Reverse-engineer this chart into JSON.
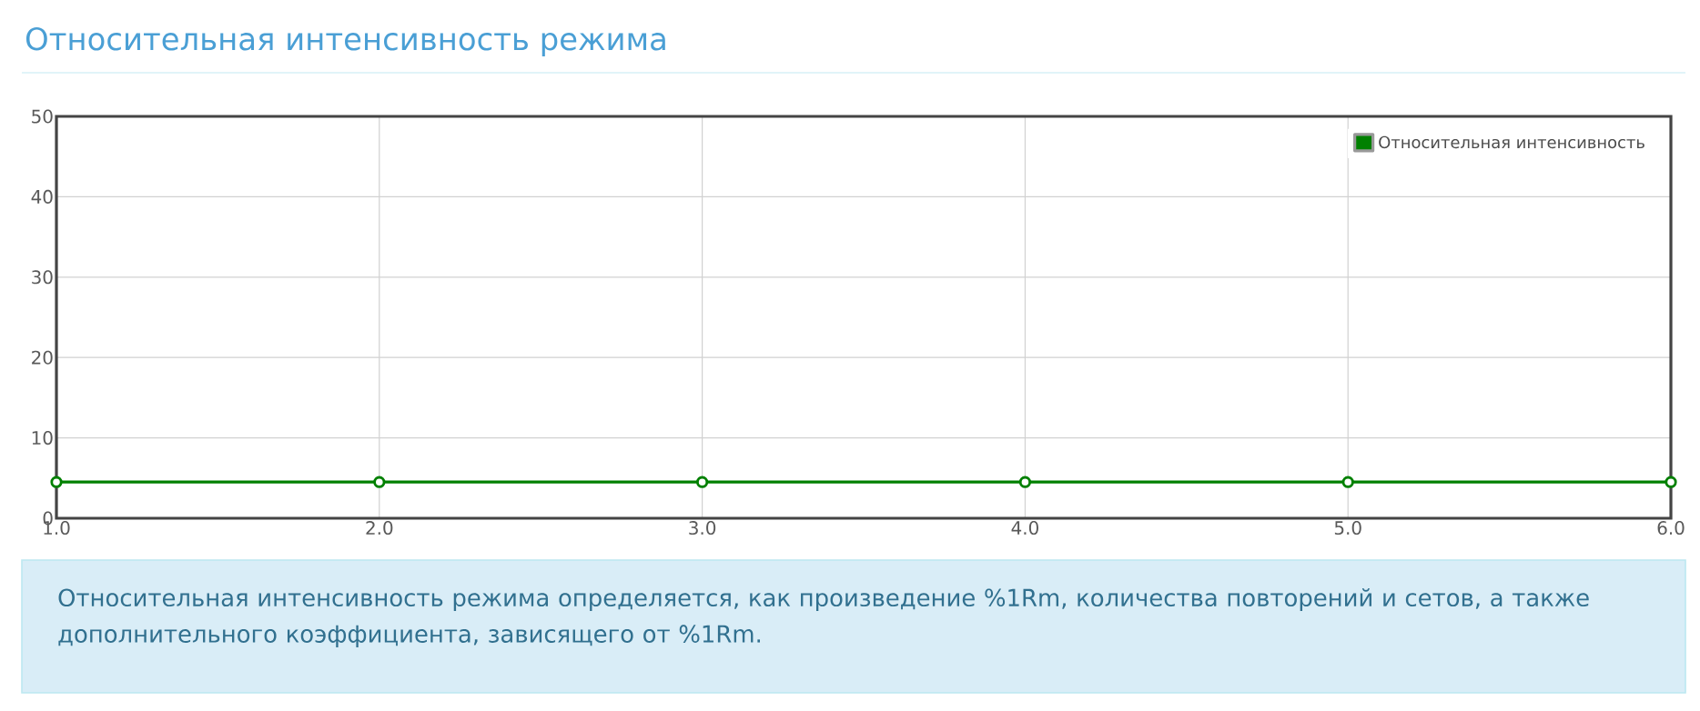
{
  "chart_data": {
    "type": "line",
    "title": "Относительная интенсивность режима",
    "x": [
      1,
      2,
      3,
      4,
      5,
      6
    ],
    "series": [
      {
        "name": "Относительная интенсивность",
        "color": "#008000",
        "values": [
          4.5,
          4.5,
          4.5,
          4.5,
          4.5,
          4.5
        ]
      }
    ],
    "xlim": [
      1,
      6
    ],
    "xticks": [
      {
        "value": 1,
        "label": "1.0"
      },
      {
        "value": 2,
        "label": "2.0"
      },
      {
        "value": 3,
        "label": "3.0"
      },
      {
        "value": 4,
        "label": "4.0"
      },
      {
        "value": 5,
        "label": "5.0"
      },
      {
        "value": 6,
        "label": "6.0"
      }
    ],
    "ylim": [
      0,
      50
    ],
    "yticks": [
      0,
      10,
      20,
      30,
      40,
      50
    ],
    "grid": true,
    "legend": "top right",
    "marker": "circle",
    "line_style": "solid",
    "annotations": [
      "Относительная интенсивность режима определяется, как произведение %1Rm, количества повторений и сетов, а также дополнительного коэффициента, зависящего от %1Rm."
    ]
  }
}
